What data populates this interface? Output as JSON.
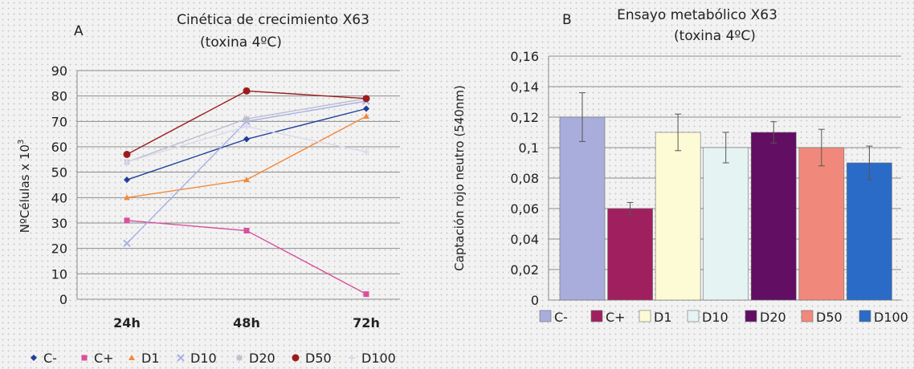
{
  "chart_data": [
    {
      "type": "line",
      "panel_label": "A",
      "title_lines": [
        "Cinética de crecimiento X63",
        "(toxina 4ºC)"
      ],
      "ylabel_main": "NºCélulas x 10",
      "ylabel_sup": "3",
      "categories": [
        "24h",
        "48h",
        "72h"
      ],
      "ylim": [
        0,
        90
      ],
      "yticks": [
        0,
        10,
        20,
        30,
        40,
        50,
        60,
        70,
        80,
        90
      ],
      "grid": true,
      "legend_position": "bottom",
      "series": [
        {
          "name": "C-",
          "color": "#1f3f9a",
          "marker": "diamond",
          "values": [
            47,
            63,
            75
          ]
        },
        {
          "name": "C+",
          "color": "#d9509b",
          "marker": "square",
          "values": [
            31,
            27,
            2
          ]
        },
        {
          "name": "D1",
          "color": "#f4893a",
          "marker": "triangle",
          "values": [
            40,
            47,
            72
          ]
        },
        {
          "name": "D10",
          "color": "#a8b0e6",
          "marker": "x",
          "values": [
            22,
            70,
            78
          ]
        },
        {
          "name": "D20",
          "color": "#bdbdcc",
          "marker": "star",
          "values": [
            54,
            71,
            79
          ]
        },
        {
          "name": "D50",
          "color": "#9b1c1c",
          "marker": "circle",
          "values": [
            57,
            82,
            79
          ]
        },
        {
          "name": "D100",
          "color": "#dcd8ea",
          "marker": "plus",
          "values": [
            54,
            68,
            58
          ]
        }
      ]
    },
    {
      "type": "bar",
      "panel_label": "B",
      "title_lines": [
        "Ensayo metabólico X63",
        "(toxina 4ºC)"
      ],
      "ylabel": "Captación rojo neutro (540nm)",
      "ylim": [
        0,
        0.16
      ],
      "yticks": [
        "0",
        "0,02",
        "0,04",
        "0,06",
        "0,08",
        "0,1",
        "0,12",
        "0,14",
        "0,16"
      ],
      "grid": true,
      "legend_position": "bottom",
      "bars": [
        {
          "name": "C-",
          "value": 0.12,
          "error": 0.016,
          "color": "#a9addc"
        },
        {
          "name": "C+",
          "value": 0.06,
          "error": 0.004,
          "color": "#a0205f"
        },
        {
          "name": "D1",
          "value": 0.11,
          "error": 0.012,
          "color": "#fdfbd6"
        },
        {
          "name": "D10",
          "value": 0.1,
          "error": 0.01,
          "color": "#e6f3f3"
        },
        {
          "name": "D20",
          "value": 0.11,
          "error": 0.007,
          "color": "#620e63"
        },
        {
          "name": "D50",
          "value": 0.1,
          "error": 0.012,
          "color": "#f0897b"
        },
        {
          "name": "D100",
          "value": 0.09,
          "error": 0.011,
          "color": "#2a6bc8"
        }
      ]
    }
  ]
}
